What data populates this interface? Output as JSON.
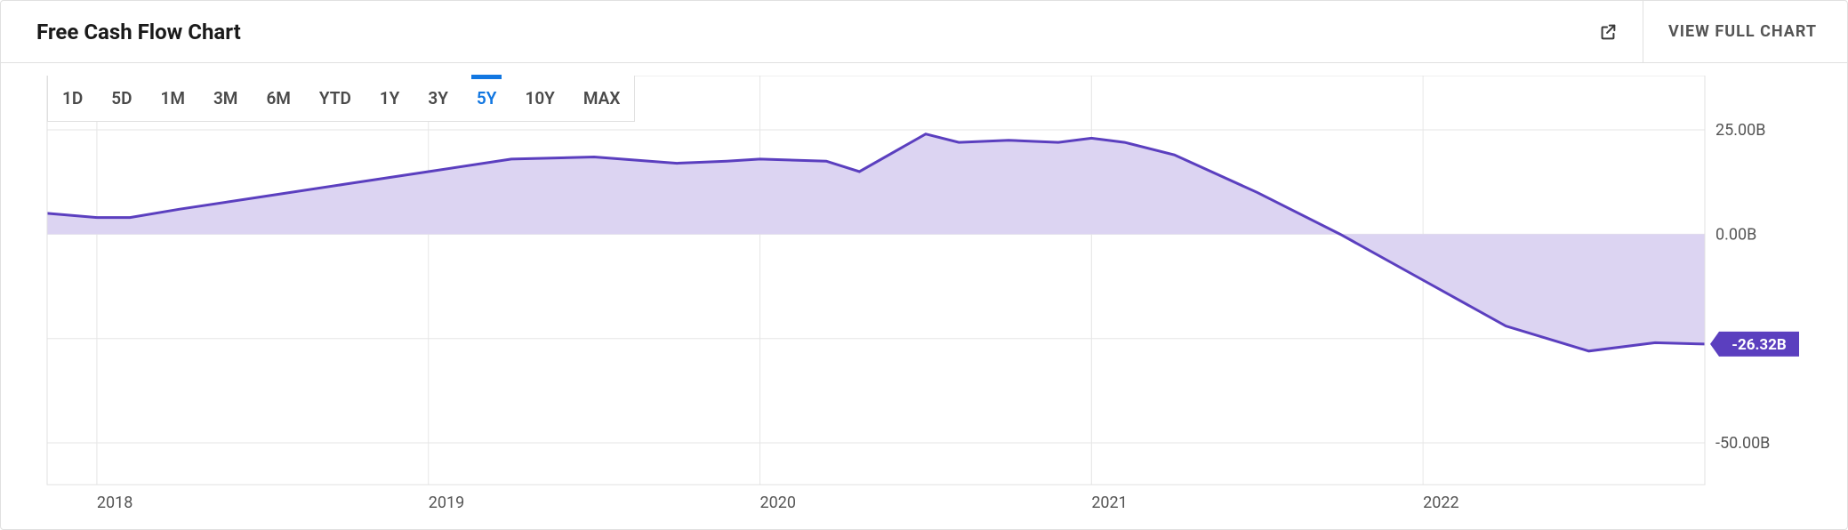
{
  "header": {
    "title": "Free Cash Flow Chart",
    "view_full_label": "VIEW FULL CHART"
  },
  "ranges": {
    "items": [
      "1D",
      "5D",
      "1M",
      "3M",
      "6M",
      "YTD",
      "1Y",
      "3Y",
      "5Y",
      "10Y",
      "MAX"
    ],
    "active_index": 8
  },
  "chart": {
    "type": "area",
    "line_color": "#5b3fbf",
    "area_color": "#dcd4f2",
    "area_opacity": 1.0,
    "grid_color": "#e6e6e6",
    "border_color": "#e0e0e0",
    "background_color": "#ffffff",
    "line_width": 3,
    "xlim": [
      2017.85,
      2022.85
    ],
    "ylim": [
      -60,
      38
    ],
    "y_ticks": [
      {
        "v": 25,
        "label": "25.00B"
      },
      {
        "v": 0,
        "label": "0.00B"
      },
      {
        "v": -25,
        "label": "-25.00B"
      },
      {
        "v": -50,
        "label": "-50.00B"
      }
    ],
    "x_ticks": [
      {
        "v": 2018,
        "label": "2018"
      },
      {
        "v": 2019,
        "label": "2019"
      },
      {
        "v": 2020,
        "label": "2020"
      },
      {
        "v": 2021,
        "label": "2021"
      },
      {
        "v": 2022,
        "label": "2022"
      }
    ],
    "x_gridlines": [
      2018,
      2019,
      2020,
      2021,
      2022
    ],
    "series": [
      {
        "x": 2017.85,
        "y": 5
      },
      {
        "x": 2018.0,
        "y": 4
      },
      {
        "x": 2018.1,
        "y": 4
      },
      {
        "x": 2018.25,
        "y": 6
      },
      {
        "x": 2018.5,
        "y": 9
      },
      {
        "x": 2018.75,
        "y": 12
      },
      {
        "x": 2019.0,
        "y": 15
      },
      {
        "x": 2019.25,
        "y": 18
      },
      {
        "x": 2019.5,
        "y": 18.5
      },
      {
        "x": 2019.75,
        "y": 17
      },
      {
        "x": 2019.9,
        "y": 17.5
      },
      {
        "x": 2020.0,
        "y": 18
      },
      {
        "x": 2020.2,
        "y": 17.5
      },
      {
        "x": 2020.3,
        "y": 15
      },
      {
        "x": 2020.5,
        "y": 24
      },
      {
        "x": 2020.6,
        "y": 22
      },
      {
        "x": 2020.75,
        "y": 22.5
      },
      {
        "x": 2020.9,
        "y": 22
      },
      {
        "x": 2021.0,
        "y": 23
      },
      {
        "x": 2021.1,
        "y": 22
      },
      {
        "x": 2021.25,
        "y": 19
      },
      {
        "x": 2021.5,
        "y": 10
      },
      {
        "x": 2021.75,
        "y": 0
      },
      {
        "x": 2022.0,
        "y": -11
      },
      {
        "x": 2022.25,
        "y": -22
      },
      {
        "x": 2022.5,
        "y": -28
      },
      {
        "x": 2022.7,
        "y": -26
      },
      {
        "x": 2022.85,
        "y": -26.32
      }
    ],
    "last_value_label": "-26.32B",
    "tag_bg_color": "#5b3fbf",
    "tag_text_color": "#ffffff",
    "label_fontsize": 18
  }
}
